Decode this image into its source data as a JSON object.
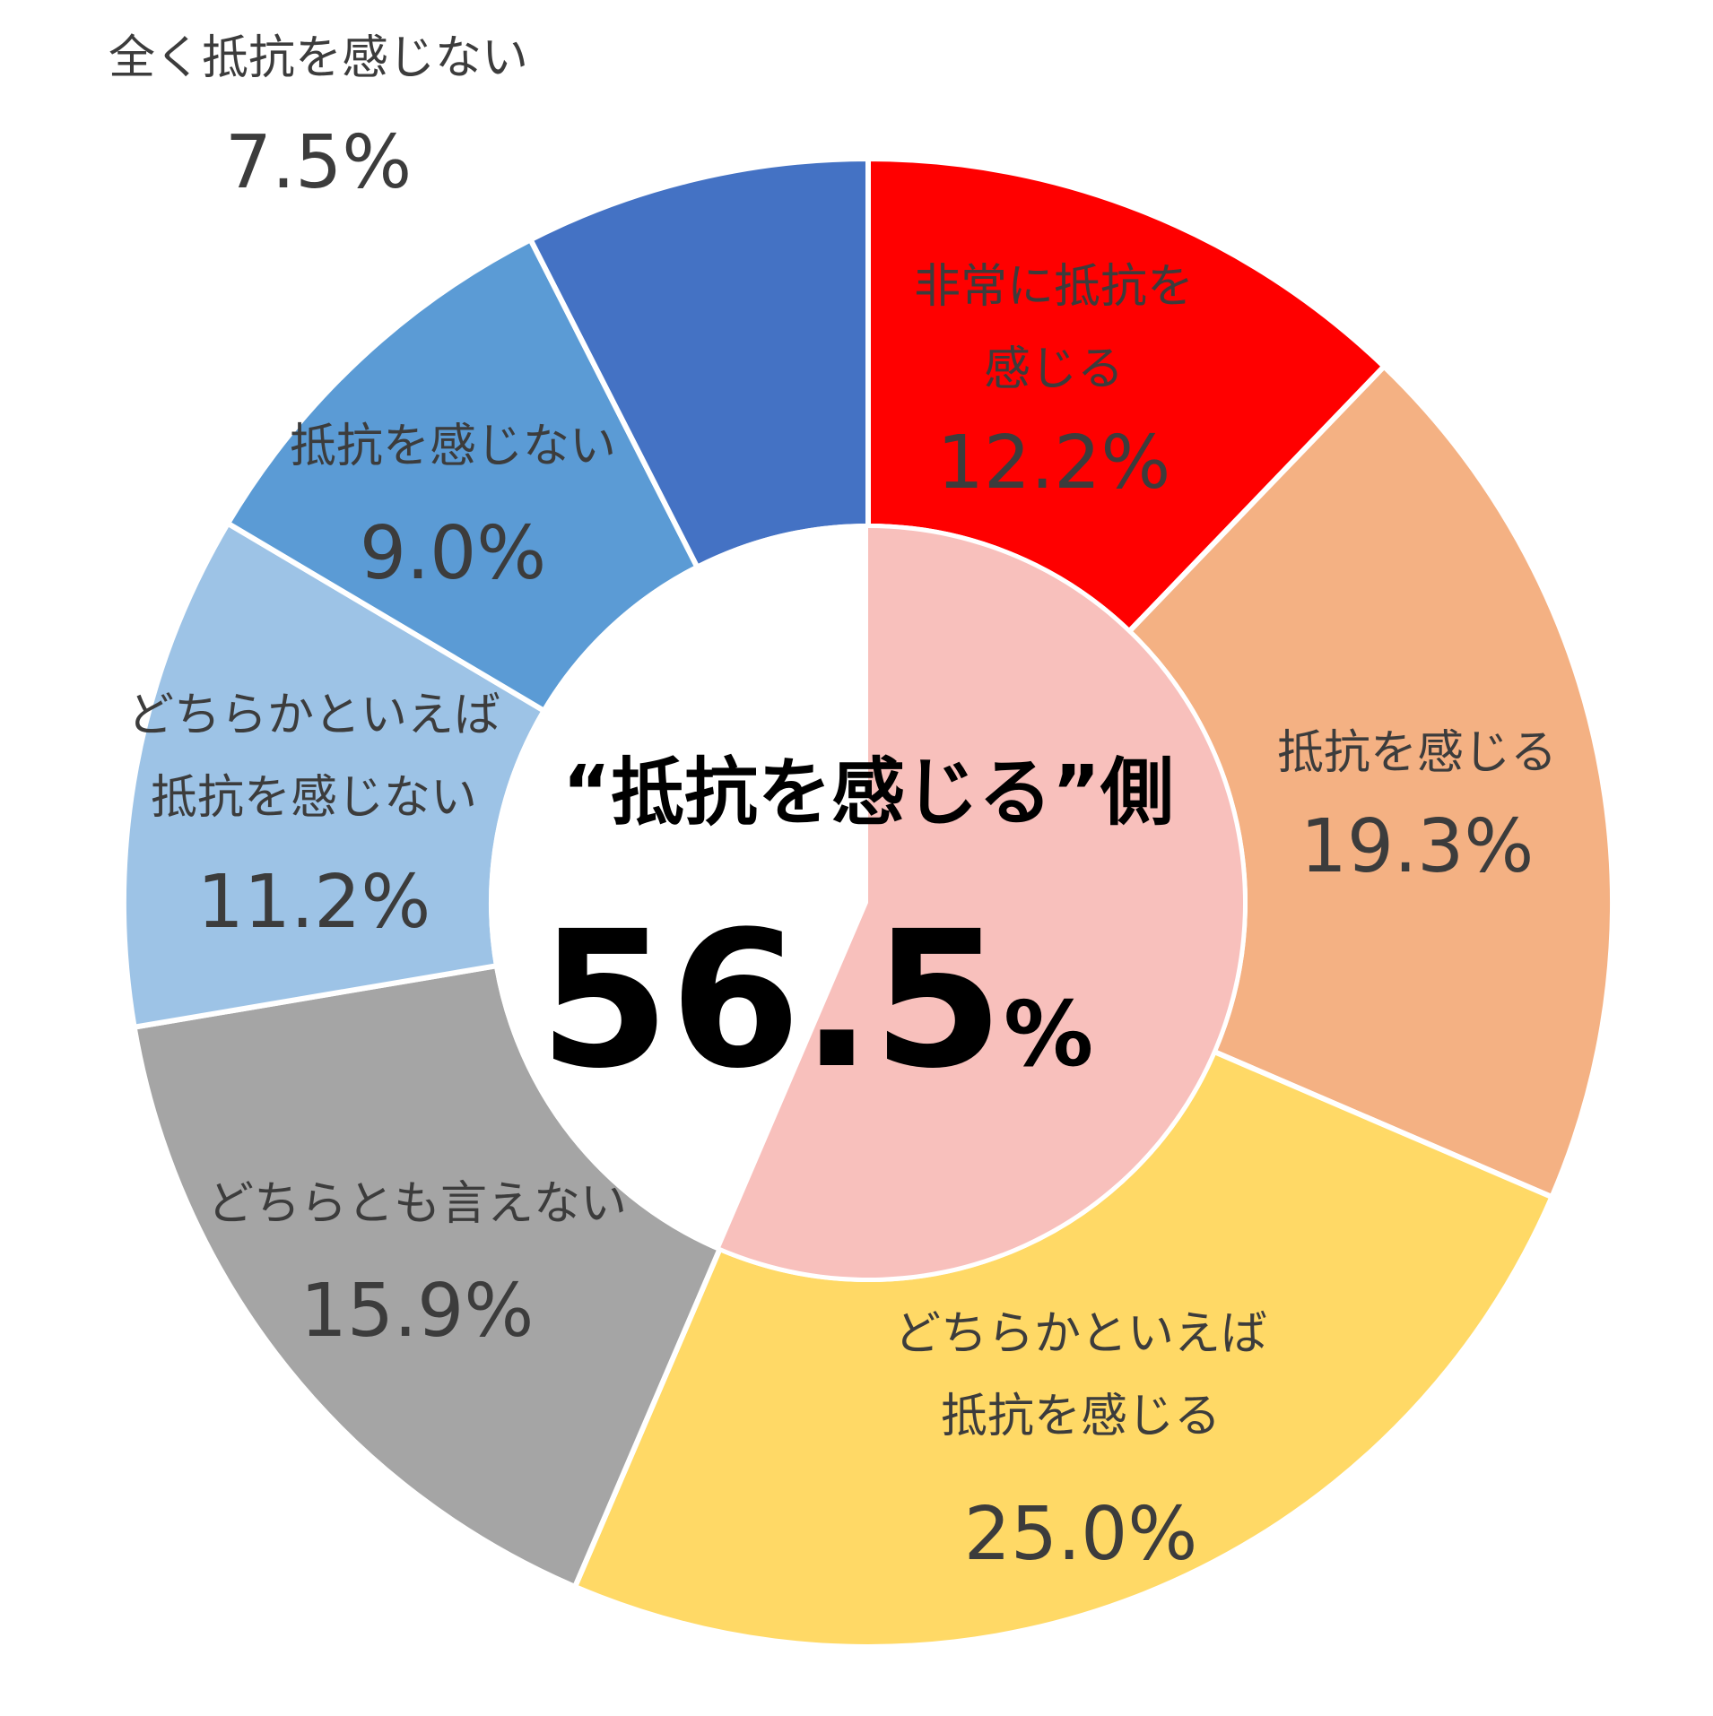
{
  "chart_data": {
    "type": "pie",
    "style": "donut",
    "slices": [
      {
        "label_lines": [
          "非常に抵抗を",
          "感じる"
        ],
        "value_label": "12.2%",
        "value": 12.2,
        "color": "#FF0000"
      },
      {
        "label_lines": [
          "抵抗を感じる"
        ],
        "value_label": "19.3%",
        "value": 19.3,
        "color": "#F4B183"
      },
      {
        "label_lines": [
          "どちらかといえば",
          "抵抗を感じる"
        ],
        "value_label": "25.0%",
        "value": 25.0,
        "color": "#FFD966"
      },
      {
        "label_lines": [
          "どちらとも言えない"
        ],
        "value_label": "15.9%",
        "value": 15.9,
        "color": "#A5A5A5"
      },
      {
        "label_lines": [
          "どちらかといえば",
          "抵抗を感じない"
        ],
        "value_label": "11.2%",
        "value": 11.2,
        "color": "#9DC3E6"
      },
      {
        "label_lines": [
          "抵抗を感じない"
        ],
        "value_label": "9.0%",
        "value": 9.0,
        "color": "#5B9BD5"
      },
      {
        "label_lines": [
          "全く抵抗を感じない"
        ],
        "value_label": "7.5%",
        "value": 7.5,
        "color": "#4472C4"
      }
    ],
    "inner": {
      "label": "“抵抗を感じる”側",
      "value_number": "56.5",
      "value_unit": "%",
      "value": 56.5,
      "color": "#F8C0BC"
    }
  }
}
